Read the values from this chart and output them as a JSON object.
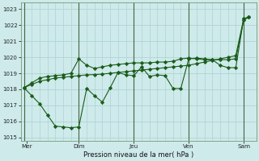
{
  "xlabel": "Pression niveau de la mer( hPa )",
  "ylim": [
    1014.8,
    1023.4
  ],
  "yticks": [
    1015,
    1016,
    1017,
    1018,
    1019,
    1020,
    1021,
    1022,
    1023
  ],
  "background_color": "#ceeaea",
  "grid_color": "#aed4d4",
  "line_color": "#1a5c1a",
  "vline_color": "#446644",
  "xlim": [
    -0.2,
    14.8
  ],
  "x_day_lines": [
    0,
    3.5,
    7,
    10.5,
    14
  ],
  "x_tick_pos": [
    0.2,
    3.5,
    7.0,
    10.5,
    14.0
  ],
  "x_tick_labels": [
    "Mer",
    "Dim",
    "Jeu",
    "Ven",
    "Sam"
  ],
  "line1_x": [
    0.0,
    0.5,
    1.0,
    1.5,
    2.0,
    2.5,
    3.0,
    3.5,
    4.0,
    4.5,
    5.0,
    5.5,
    6.0,
    6.5,
    7.0,
    7.5,
    8.0,
    8.5,
    9.0,
    9.5,
    10.0,
    10.5,
    11.0,
    11.5,
    12.0,
    12.5,
    13.0,
    13.5,
    14.0,
    14.3
  ],
  "line1_y": [
    1018.1,
    1018.3,
    1018.5,
    1018.6,
    1018.7,
    1018.75,
    1018.8,
    1018.85,
    1018.9,
    1018.92,
    1018.95,
    1019.0,
    1019.05,
    1019.1,
    1019.15,
    1019.2,
    1019.25,
    1019.3,
    1019.35,
    1019.4,
    1019.45,
    1019.5,
    1019.6,
    1019.7,
    1019.8,
    1019.9,
    1020.0,
    1020.1,
    1022.4,
    1022.5
  ],
  "line2_x": [
    0.0,
    0.5,
    1.0,
    1.5,
    2.0,
    2.5,
    3.0,
    3.5,
    4.0,
    4.5,
    5.0,
    5.5,
    6.0,
    6.5,
    7.0,
    7.5,
    8.0,
    8.5,
    9.0,
    9.5,
    10.0,
    10.5,
    11.0,
    11.5,
    12.0,
    12.5,
    13.0,
    13.5,
    14.0,
    14.3
  ],
  "line2_y": [
    1018.1,
    1018.4,
    1018.7,
    1018.8,
    1018.85,
    1018.9,
    1019.0,
    1019.9,
    1019.5,
    1019.3,
    1019.4,
    1019.5,
    1019.55,
    1019.6,
    1019.65,
    1019.65,
    1019.65,
    1019.7,
    1019.7,
    1019.75,
    1019.9,
    1019.95,
    1019.9,
    1019.85,
    1019.85,
    1019.85,
    1019.85,
    1019.9,
    1022.3,
    1022.5
  ],
  "line3_x": [
    0.0,
    0.5,
    1.0,
    1.5,
    2.0,
    2.5,
    3.0,
    3.5,
    4.0,
    4.5,
    5.0,
    5.5,
    6.0,
    6.5,
    7.0,
    7.5,
    8.0,
    8.5,
    9.0,
    9.5,
    10.0,
    10.5,
    11.0,
    11.5,
    12.0,
    12.5,
    13.0,
    13.5,
    14.0,
    14.3
  ],
  "line3_y": [
    1018.1,
    1017.6,
    1017.1,
    1016.4,
    1015.7,
    1015.65,
    1015.6,
    1015.65,
    1018.05,
    1017.6,
    1017.2,
    1018.1,
    1019.05,
    1018.9,
    1018.85,
    1019.4,
    1018.8,
    1018.9,
    1018.85,
    1018.05,
    1018.05,
    1019.9,
    1019.95,
    1019.9,
    1019.85,
    1019.5,
    1019.35,
    1019.35,
    1022.4,
    1022.5
  ]
}
